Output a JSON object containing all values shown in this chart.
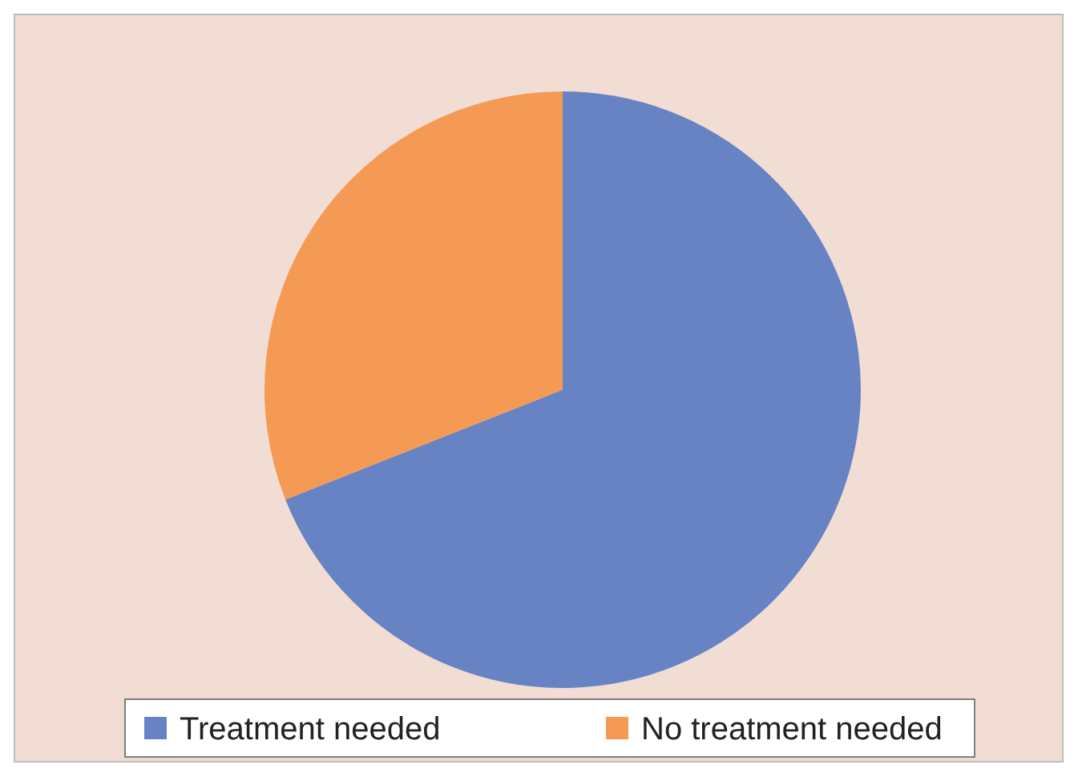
{
  "chart_data": {
    "type": "pie",
    "categories": [
      "Treatment needed",
      "No treatment needed"
    ],
    "values": [
      69,
      31
    ],
    "colors": [
      "#6783c3",
      "#f59a55"
    ],
    "legend": "bottom"
  }
}
